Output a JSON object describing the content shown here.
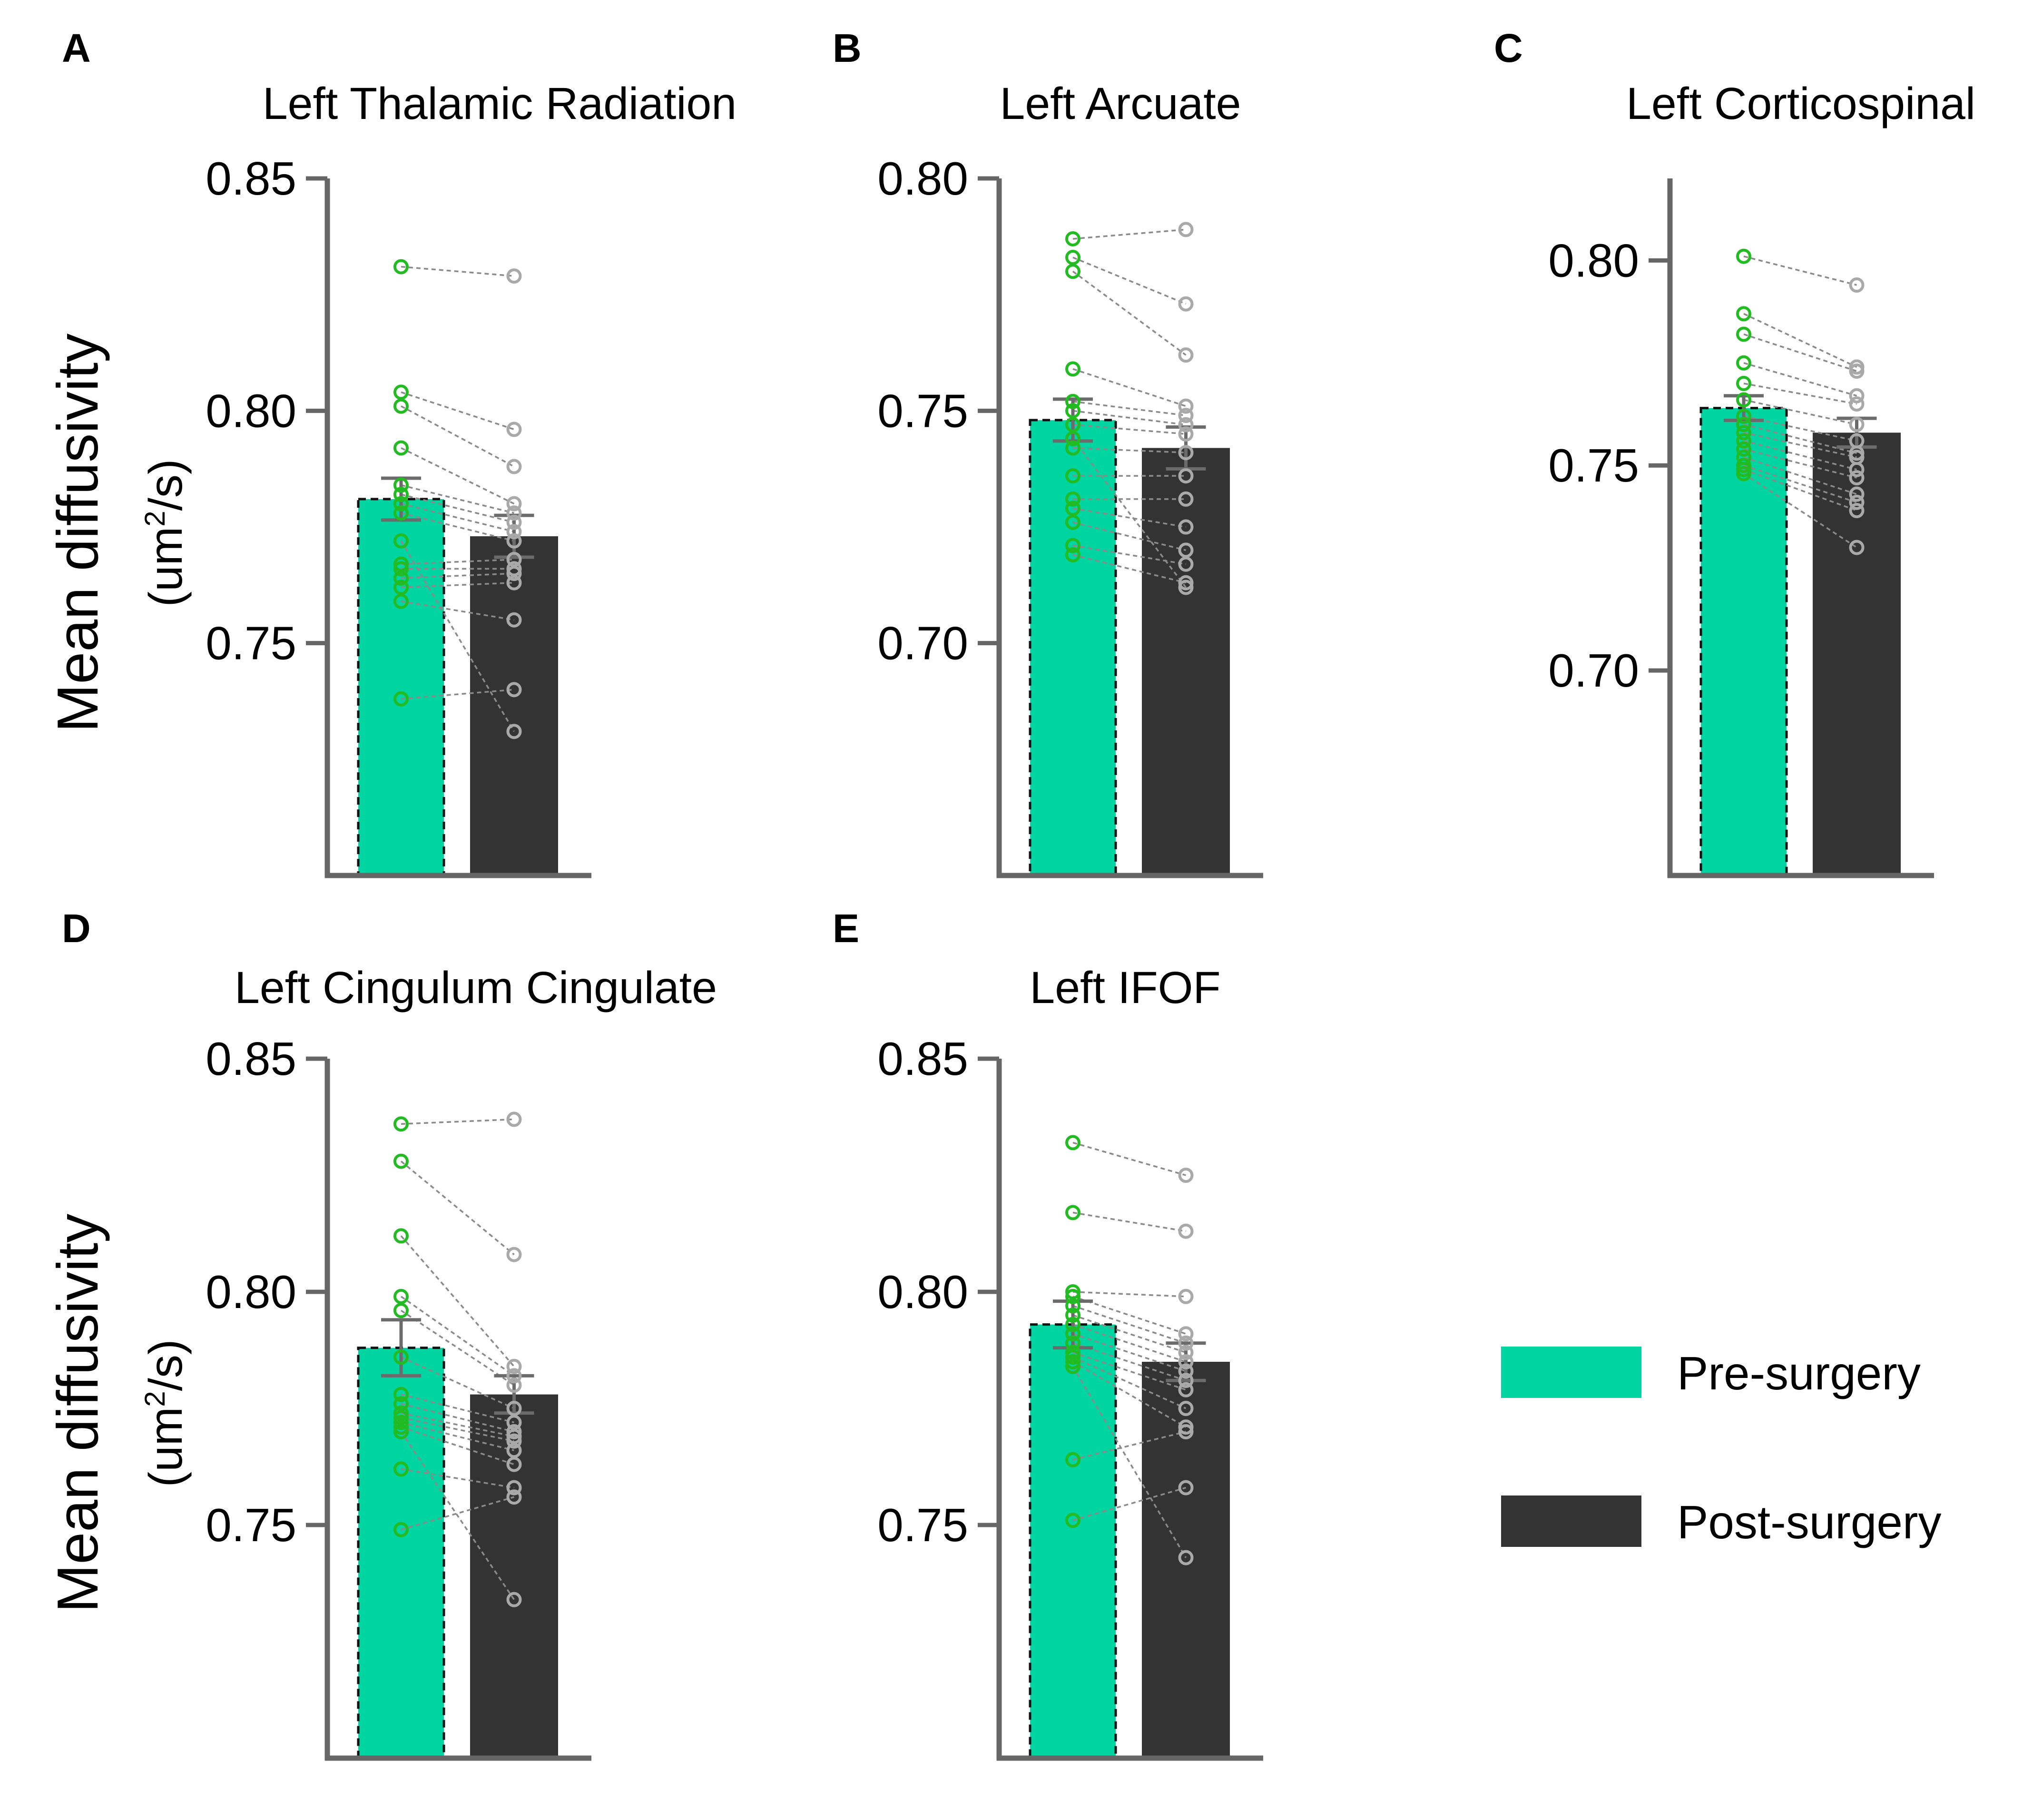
{
  "figure": {
    "ylabel_main": "Mean diffusivity",
    "ylabel_unit_prefix": "(um",
    "ylabel_unit_sup": "2",
    "ylabel_unit_suffix": "/s)",
    "legend": [
      {
        "label": "Pre-surgery",
        "color": "#00d4a0"
      },
      {
        "label": "Post-surgery",
        "color": "#333333"
      }
    ]
  },
  "chart_data": [
    {
      "letter": "A",
      "title": "Left Thalamic Radiation",
      "type": "bar",
      "categories": [
        "Pre-surgery",
        "Post-surgery"
      ],
      "ylim": [
        0.7,
        0.85
      ],
      "ticks": [
        0.75,
        0.8,
        0.85
      ],
      "tick_labels": [
        "0.75",
        "0.80",
        "0.85"
      ],
      "means": [
        0.781,
        0.773
      ],
      "sem": [
        0.0045,
        0.0045
      ],
      "pairs": [
        [
          0.831,
          0.829
        ],
        [
          0.804,
          0.796
        ],
        [
          0.801,
          0.788
        ],
        [
          0.792,
          0.78
        ],
        [
          0.784,
          0.778
        ],
        [
          0.782,
          0.776
        ],
        [
          0.78,
          0.774
        ],
        [
          0.778,
          0.772
        ],
        [
          0.767,
          0.768
        ],
        [
          0.766,
          0.766
        ],
        [
          0.764,
          0.765
        ],
        [
          0.762,
          0.763
        ],
        [
          0.759,
          0.755
        ],
        [
          0.738,
          0.74
        ],
        [
          0.772,
          0.731
        ]
      ]
    },
    {
      "letter": "B",
      "title": "Left Arcuate",
      "type": "bar",
      "categories": [
        "Pre-surgery",
        "Post-surgery"
      ],
      "ylim": [
        0.65,
        0.8
      ],
      "ticks": [
        0.7,
        0.75,
        0.8
      ],
      "tick_labels": [
        "0.70",
        "0.75",
        "0.80"
      ],
      "means": [
        0.748,
        0.742
      ],
      "sem": [
        0.0045,
        0.0045
      ],
      "pairs": [
        [
          0.787,
          0.789
        ],
        [
          0.783,
          0.773
        ],
        [
          0.78,
          0.762
        ],
        [
          0.759,
          0.751
        ],
        [
          0.752,
          0.749
        ],
        [
          0.75,
          0.747
        ],
        [
          0.747,
          0.745
        ],
        [
          0.742,
          0.741
        ],
        [
          0.736,
          0.736
        ],
        [
          0.731,
          0.731
        ],
        [
          0.729,
          0.725
        ],
        [
          0.726,
          0.72
        ],
        [
          0.721,
          0.717
        ],
        [
          0.719,
          0.713
        ],
        [
          0.744,
          0.712
        ]
      ]
    },
    {
      "letter": "C",
      "title": "Left Corticospinal",
      "type": "bar",
      "categories": [
        "Pre-surgery",
        "Post-surgery"
      ],
      "ylim": [
        0.65,
        0.82
      ],
      "ticks": [
        0.7,
        0.75,
        0.8
      ],
      "tick_labels": [
        "0.70",
        "0.75",
        "0.80"
      ],
      "means": [
        0.764,
        0.758
      ],
      "sem": [
        0.003,
        0.0035
      ],
      "pairs": [
        [
          0.801,
          0.794
        ],
        [
          0.787,
          0.774
        ],
        [
          0.782,
          0.773
        ],
        [
          0.775,
          0.767
        ],
        [
          0.77,
          0.765
        ],
        [
          0.766,
          0.76
        ],
        [
          0.762,
          0.756
        ],
        [
          0.76,
          0.753
        ],
        [
          0.758,
          0.752
        ],
        [
          0.756,
          0.749
        ],
        [
          0.754,
          0.747
        ],
        [
          0.752,
          0.743
        ],
        [
          0.75,
          0.741
        ],
        [
          0.749,
          0.739
        ],
        [
          0.748,
          0.73
        ]
      ]
    },
    {
      "letter": "D",
      "title": "Left Cingulum Cingulate",
      "type": "bar",
      "categories": [
        "Pre-surgery",
        "Post-surgery"
      ],
      "ylim": [
        0.7,
        0.85
      ],
      "ticks": [
        0.75,
        0.8,
        0.85
      ],
      "tick_labels": [
        "0.75",
        "0.80",
        "0.85"
      ],
      "means": [
        0.788,
        0.778
      ],
      "sem": [
        0.006,
        0.004
      ],
      "pairs": [
        [
          0.836,
          0.837
        ],
        [
          0.828,
          0.808
        ],
        [
          0.812,
          0.784
        ],
        [
          0.799,
          0.782
        ],
        [
          0.796,
          0.78
        ],
        [
          0.786,
          0.775
        ],
        [
          0.778,
          0.772
        ],
        [
          0.776,
          0.77
        ],
        [
          0.774,
          0.769
        ],
        [
          0.773,
          0.768
        ],
        [
          0.772,
          0.766
        ],
        [
          0.771,
          0.763
        ],
        [
          0.762,
          0.758
        ],
        [
          0.749,
          0.756
        ],
        [
          0.77,
          0.734
        ]
      ]
    },
    {
      "letter": "E",
      "title": "Left IFOF",
      "type": "bar",
      "categories": [
        "Pre-surgery",
        "Post-surgery"
      ],
      "ylim": [
        0.7,
        0.85
      ],
      "ticks": [
        0.75,
        0.8,
        0.85
      ],
      "tick_labels": [
        "0.75",
        "0.80",
        "0.85"
      ],
      "means": [
        0.793,
        0.785
      ],
      "sem": [
        0.005,
        0.004
      ],
      "pairs": [
        [
          0.832,
          0.825
        ],
        [
          0.817,
          0.813
        ],
        [
          0.8,
          0.799
        ],
        [
          0.799,
          0.791
        ],
        [
          0.797,
          0.789
        ],
        [
          0.795,
          0.787
        ],
        [
          0.793,
          0.785
        ],
        [
          0.791,
          0.783
        ],
        [
          0.789,
          0.781
        ],
        [
          0.787,
          0.779
        ],
        [
          0.786,
          0.775
        ],
        [
          0.785,
          0.771
        ],
        [
          0.764,
          0.77
        ],
        [
          0.751,
          0.758
        ],
        [
          0.784,
          0.743
        ]
      ]
    }
  ]
}
